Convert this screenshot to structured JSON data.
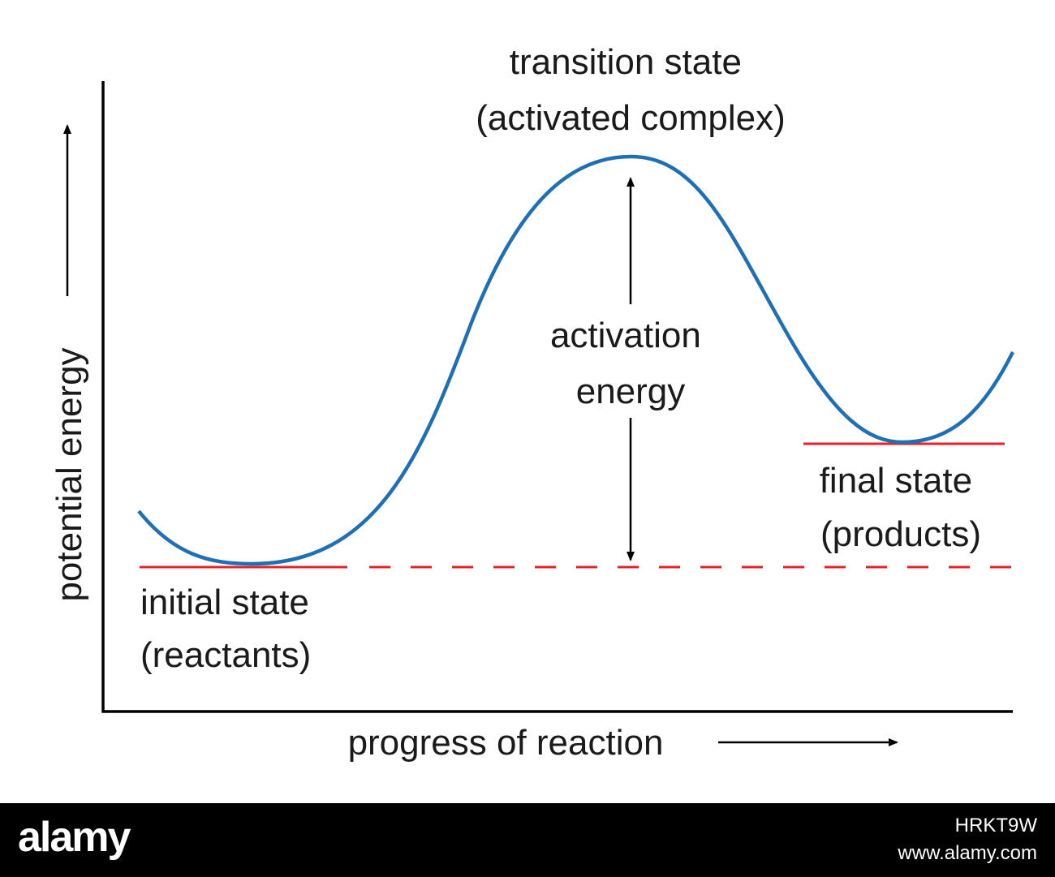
{
  "diagram": {
    "transition_label": [
      "transition state",
      "(activated complex)"
    ],
    "activation_label": [
      "activation",
      "energy"
    ],
    "initial_label": [
      "initial state",
      "(reactants)"
    ],
    "final_label": [
      "final state",
      "(products)"
    ],
    "y_axis_label": "potential energy",
    "x_axis_label": "progress of reaction"
  },
  "colors": {
    "curve": "#1f6fb5",
    "energy_level": "#e3242b",
    "axis": "#000000"
  },
  "watermark": {
    "logo": "alamy",
    "image_id": "HRKT9W",
    "url": "www.alamy.com"
  }
}
